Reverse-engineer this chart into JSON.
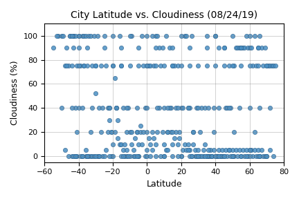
{
  "title": "City Latitude vs. Cloudiness (08/24/19)",
  "xlabel": "Latitude",
  "ylabel": "Cloudiness (%)",
  "xlim": [
    -60,
    80
  ],
  "ylim": [
    -5,
    110
  ],
  "xticks": [
    -60,
    -40,
    -20,
    0,
    20,
    40,
    60,
    80
  ],
  "yticks": [
    0,
    20,
    40,
    60,
    80,
    100
  ],
  "marker_color": "#4a90c4",
  "marker_edge_color": "#2c5f8a",
  "marker_size": 20,
  "marker_alpha": 0.85,
  "x": [
    -55,
    -52,
    -48,
    -47,
    -46,
    -45,
    -44,
    -43,
    -42,
    -41,
    -40,
    -39,
    -38,
    -37,
    -36,
    -35,
    -34,
    -33,
    -32,
    -31,
    -30,
    -29,
    -28,
    -27,
    -26,
    -25,
    -24,
    -23,
    -22,
    -21,
    -20,
    -19,
    -18,
    -17,
    -16,
    -15,
    -14,
    -13,
    -12,
    -11,
    -10,
    -9,
    -8,
    -7,
    -6,
    -5,
    -4,
    -3,
    -2,
    -1,
    0,
    1,
    2,
    3,
    4,
    5,
    6,
    7,
    8,
    9,
    10,
    11,
    12,
    13,
    14,
    15,
    16,
    17,
    18,
    19,
    20,
    21,
    22,
    23,
    24,
    25,
    26,
    27,
    28,
    29,
    30,
    31,
    32,
    33,
    34,
    35,
    36,
    37,
    38,
    39,
    40,
    41,
    42,
    43,
    44,
    45,
    46,
    47,
    48,
    49,
    50,
    51,
    52,
    53,
    54,
    55,
    56,
    57,
    58,
    59,
    60,
    61,
    62,
    63,
    64,
    65,
    66,
    67,
    68,
    69,
    70,
    71,
    72,
    73,
    74,
    75,
    -53,
    -50,
    -49,
    -46,
    -43,
    -42,
    -41,
    -40,
    -39,
    -38,
    -37,
    -36,
    -35,
    -34,
    -33,
    -32,
    -31,
    -30,
    -29,
    -28,
    -27,
    -26,
    -25,
    -23,
    -22,
    -21,
    -20,
    -19,
    -18,
    -17,
    -16,
    -15,
    -14,
    -13,
    -12,
    -11,
    -10,
    -9,
    -8,
    -7,
    -6,
    -5,
    -4,
    -3,
    -2,
    -1,
    0,
    1,
    2,
    3,
    4,
    5,
    6,
    7,
    8,
    9,
    10,
    11,
    12,
    13,
    14,
    15,
    16,
    17,
    18,
    19,
    20,
    21,
    22,
    23,
    24,
    25,
    26,
    27,
    28,
    29,
    30,
    31,
    32,
    33,
    34,
    35,
    36,
    37,
    38,
    39,
    40,
    41,
    42,
    43,
    44,
    45,
    46,
    47,
    48,
    49,
    50,
    51,
    52,
    53,
    54,
    55,
    56,
    57,
    58,
    59,
    60,
    61,
    62,
    63,
    64,
    65,
    66,
    67,
    68,
    69,
    70,
    -45,
    -44,
    -43,
    -42,
    -35,
    -28,
    -20,
    -15,
    -10,
    -5,
    0,
    5,
    10,
    15,
    20,
    25,
    30,
    35,
    40,
    45,
    50,
    55,
    60,
    65,
    70,
    -47,
    -44,
    -40,
    -37,
    -30,
    -20,
    -15,
    -10,
    -5,
    0,
    5,
    10,
    15,
    20,
    25,
    30,
    35,
    40,
    45,
    50,
    55,
    60,
    65,
    70,
    -50,
    -44,
    -40,
    -38,
    -32,
    -22,
    -18,
    -12,
    -6,
    0,
    6,
    12,
    18,
    24,
    30,
    36,
    42,
    48,
    54,
    60,
    66,
    72,
    -43,
    -35,
    -25,
    -15,
    -5,
    5,
    15,
    25,
    35,
    45,
    55,
    65,
    -42,
    -38,
    -30,
    -22,
    -14,
    -6,
    2,
    10,
    18,
    26,
    34,
    42,
    50,
    58,
    66,
    74,
    -41,
    -33,
    -21,
    -9,
    3,
    15,
    27,
    39,
    51,
    63,
    -40,
    -20,
    0,
    20,
    40,
    60,
    -48,
    -36,
    -24,
    -12,
    0,
    12,
    24,
    36,
    48,
    60,
    72
  ],
  "y": [
    90,
    100,
    75,
    90,
    0,
    100,
    0,
    100,
    0,
    0,
    90,
    0,
    0,
    75,
    0,
    0,
    0,
    0,
    0,
    0,
    52,
    0,
    0,
    75,
    0,
    0,
    75,
    40,
    30,
    0,
    75,
    65,
    40,
    30,
    100,
    75,
    40,
    0,
    0,
    40,
    0,
    100,
    0,
    0,
    20,
    0,
    25,
    100,
    75,
    40,
    75,
    75,
    75,
    100,
    75,
    100,
    100,
    90,
    75,
    90,
    40,
    100,
    20,
    90,
    40,
    75,
    75,
    40,
    75,
    20,
    40,
    40,
    100,
    100,
    40,
    40,
    100,
    20,
    0,
    40,
    0,
    0,
    40,
    0,
    40,
    100,
    0,
    0,
    0,
    40,
    100,
    0,
    90,
    0,
    0,
    90,
    40,
    40,
    75,
    40,
    100,
    75,
    90,
    90,
    90,
    90,
    90,
    90,
    100,
    90,
    90,
    90,
    75,
    100,
    75,
    90,
    100,
    90,
    75,
    90,
    75,
    75,
    75,
    75,
    75,
    75,
    100,
    100,
    100,
    75,
    100,
    100,
    75,
    100,
    75,
    100,
    100,
    100,
    75,
    100,
    100,
    75,
    100,
    75,
    100,
    40,
    20,
    40,
    100,
    20,
    40,
    20,
    10,
    20,
    40,
    15,
    10,
    10,
    5,
    10,
    20,
    0,
    20,
    10,
    5,
    15,
    20,
    10,
    20,
    10,
    20,
    0,
    20,
    15,
    10,
    5,
    15,
    10,
    20,
    40,
    0,
    20,
    10,
    5,
    20,
    40,
    20,
    10,
    15,
    20,
    10,
    15,
    0,
    5,
    10,
    5,
    10,
    5,
    0,
    10,
    5,
    0,
    5,
    20,
    0,
    5,
    10,
    0,
    0,
    5,
    0,
    5,
    0,
    0,
    5,
    0,
    5,
    0,
    5,
    0,
    5,
    0,
    5,
    0,
    5,
    0,
    5,
    0,
    5,
    0,
    5,
    0,
    5,
    5,
    0,
    5,
    0,
    5,
    0,
    5,
    0,
    0,
    0,
    100,
    100,
    0,
    40,
    0,
    0,
    0,
    0,
    100,
    0,
    0,
    0,
    0,
    0,
    0,
    0,
    0,
    0,
    0,
    0,
    0,
    0,
    0,
    0,
    0,
    75,
    75,
    75,
    75,
    75,
    75,
    75,
    75,
    75,
    75,
    75,
    75,
    75,
    75,
    75,
    75,
    75,
    75,
    75,
    75,
    75,
    75,
    75,
    75,
    40,
    40,
    40,
    40,
    40,
    40,
    40,
    40,
    40,
    40,
    40,
    40,
    40,
    40,
    40,
    40,
    40,
    40,
    40,
    40,
    40,
    40,
    90,
    90,
    90,
    90,
    90,
    90,
    90,
    90,
    90,
    90,
    90,
    90,
    0,
    0,
    0,
    0,
    0,
    0,
    0,
    0,
    0,
    0,
    0,
    0,
    0,
    0,
    0,
    0,
    20,
    20,
    20,
    20,
    20,
    20,
    20,
    20,
    20,
    20,
    100,
    100,
    100,
    100,
    100,
    100,
    5,
    5,
    5,
    5,
    5,
    5,
    5,
    5,
    5,
    5,
    5
  ]
}
